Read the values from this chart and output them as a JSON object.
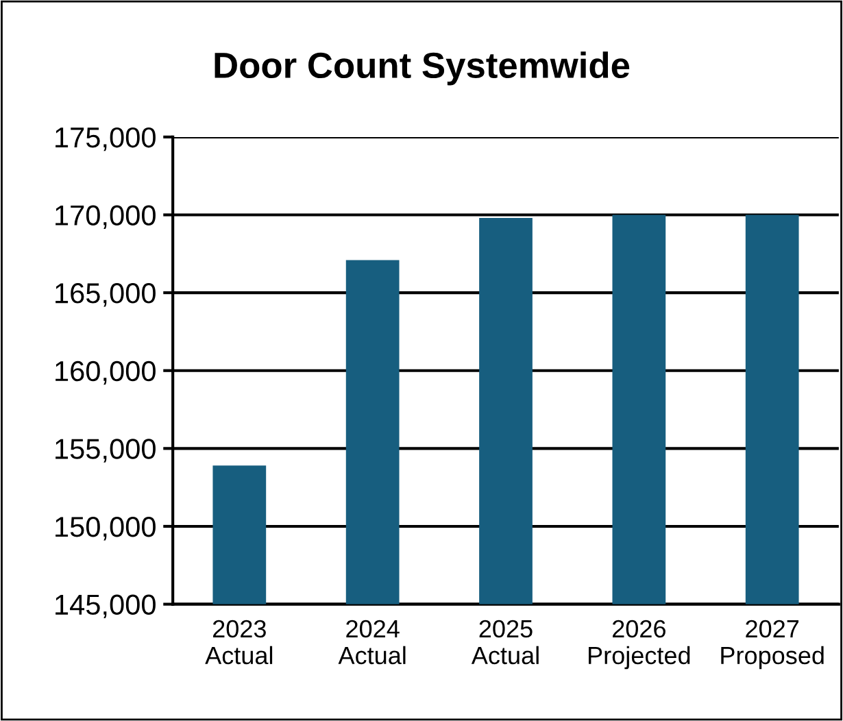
{
  "chart_data": {
    "type": "bar",
    "title": "Door Count Systemwide",
    "categories": [
      "2023\nActual",
      "2024\nActual",
      "2025\nActual",
      "2026\nProjected",
      "2027\nProposed"
    ],
    "values": [
      153900,
      167100,
      169800,
      170000,
      170000
    ],
    "color": "#175e7f",
    "ylim": [
      145000,
      175000
    ],
    "yticks": [
      {
        "value": 145000,
        "label": "145,000"
      },
      {
        "value": 150000,
        "label": "150,000"
      },
      {
        "value": 155000,
        "label": "155,000"
      },
      {
        "value": 160000,
        "label": "160,000"
      },
      {
        "value": 165000,
        "label": "165,000"
      },
      {
        "value": 170000,
        "label": "170,000"
      },
      {
        "value": 175000,
        "label": "175,000"
      }
    ],
    "grid": "y"
  }
}
